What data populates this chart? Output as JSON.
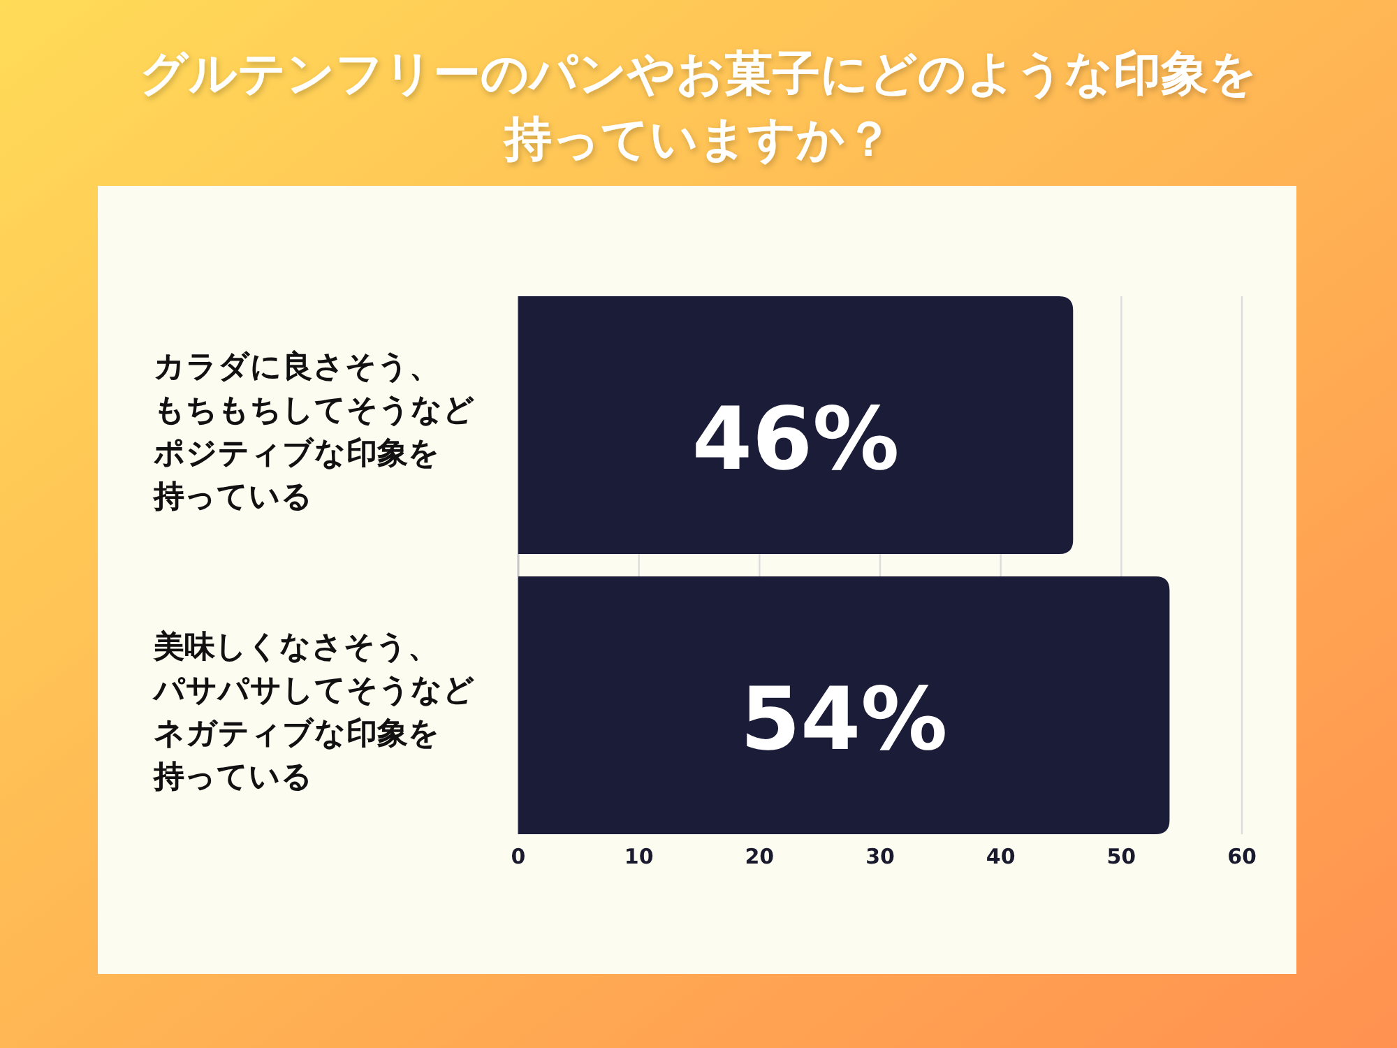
{
  "chart_data": {
    "type": "bar",
    "orientation": "horizontal",
    "title": "グルテンフリーのパンやお菓子にどのような印象を持っていますか？",
    "categories": [
      "カラダに良さそう、もちもちしてそうなどポジティブな印象を持っている",
      "美味しくなさそう、パサパサしてそうなどネガティブな印象を持っている"
    ],
    "values": [
      46,
      54
    ],
    "value_labels": [
      "46%",
      "54%"
    ],
    "color": "#1b1c37",
    "xlim": [
      0,
      60
    ],
    "xticks": [
      0,
      10,
      20,
      30,
      40,
      50,
      60
    ],
    "grid": "x"
  }
}
